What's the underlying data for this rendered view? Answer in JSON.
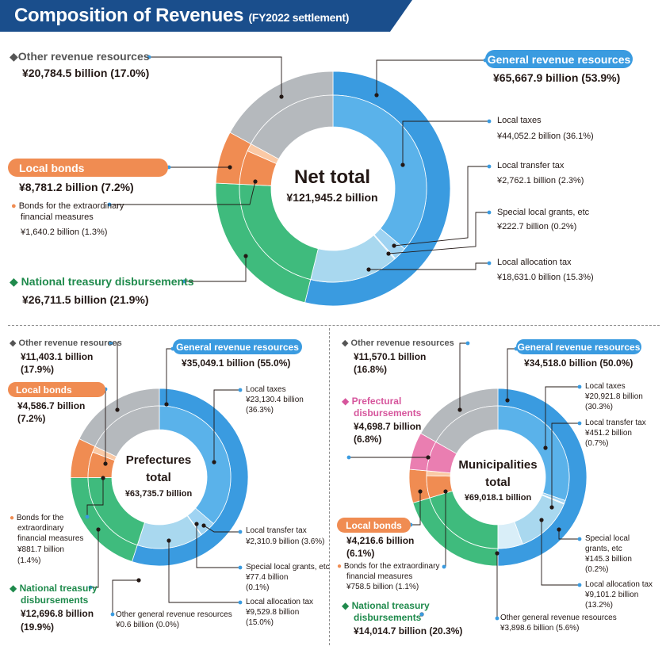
{
  "header": {
    "title": "Composition of Revenues",
    "subtitle": "(FY2022 settlement)",
    "bg_color": "#1a4e8c"
  },
  "colors": {
    "general_outer": "#3a9be0",
    "local_taxes": "#5ab2ea",
    "local_transfer_tax": "#9fd3f2",
    "special_grants": "#c7e6f8",
    "local_allocation_tax": "#a9d8ef",
    "other_general": "#d9eef8",
    "national_treasury": "#3fbb7d",
    "local_bonds": "#f08c52",
    "bonds_extraordinary": "#fac9a5",
    "prefectural": "#ea7eb1",
    "other": "#b5b9bd",
    "leader": "#231815"
  },
  "net": {
    "center_title": "Net total",
    "center_value": "¥121,945.2 billion",
    "other_label": "Other revenue resources",
    "other_value": "¥20,784.5 billion (17.0%)",
    "general_label": "General revenue resources",
    "general_value": "¥65,667.9 billion (53.9%)",
    "local_bonds_label": "Local bonds",
    "local_bonds_value": "¥8,781.2 billion (7.2%)",
    "bonds_ext_label_1": "Bonds for the extraordinary",
    "bonds_ext_label_2": "financial measures",
    "bonds_ext_value": "¥1,640.2 billion (1.3%)",
    "national_label": "National treasury disbursements",
    "national_value": "¥26,711.5 billion (21.9%)",
    "local_taxes_label": "Local taxes",
    "local_taxes_value": "¥44,052.2 billion (36.1%)",
    "transfer_label": "Local transfer tax",
    "transfer_value": "¥2,762.1 billion (2.3%)",
    "special_label": "Special local grants, etc",
    "special_value": "¥222.7 billion (0.2%)",
    "allocation_label": "Local allocation tax",
    "allocation_value": "¥18,631.0 billion (15.3%)"
  },
  "pref": {
    "center_title_1": "Prefectures",
    "center_title_2": "total",
    "center_value": "¥63,735.7 billion",
    "other_label": "Other revenue resources",
    "other_value_1": "¥11,403.1 billion",
    "other_value_2": "(17.9%)",
    "general_label": "General revenue resources",
    "general_value": "¥35,049.1 billion (55.0%)",
    "local_bonds_label": "Local bonds",
    "local_bonds_value_1": "¥4,586.7 billion",
    "local_bonds_value_2": "(7.2%)",
    "bonds_ext_1": "Bonds for the",
    "bonds_ext_2": "extraordinary",
    "bonds_ext_3": "financial measures",
    "bonds_ext_value_1": "¥881.7 billion",
    "bonds_ext_value_2": "(1.4%)",
    "national_label_1": "National treasury",
    "national_label_2": "disbursements",
    "national_value_1": "¥12,696.8 billion",
    "national_value_2": "(19.9%)",
    "local_taxes_label": "Local taxes",
    "local_taxes_value_1": "¥23,130.4 billion",
    "local_taxes_value_2": "(36.3%)",
    "transfer_label": "Local transfer tax",
    "transfer_value": "¥2,310.9 billion (3.6%)",
    "special_label": "Special local grants, etc",
    "special_value_1": "¥77.4 billion",
    "special_value_2": "(0.1%)",
    "allocation_label": "Local allocation tax",
    "allocation_value_1": "¥9,529.8 billion",
    "allocation_value_2": "(15.0%)",
    "other_general_label": "Other general revenue resources",
    "other_general_value": "¥0.6 billion (0.0%)"
  },
  "muni": {
    "center_title_1": "Municipalities",
    "center_title_2": "total",
    "center_value": "¥69,018.1 billion",
    "other_label": "Other revenue resources",
    "other_value_1": "¥11,570.1 billion",
    "other_value_2": "(16.8%)",
    "general_label": "General revenue resources",
    "general_value": "¥34,518.0 billion (50.0%)",
    "prefectural_label_1": "Prefectural",
    "prefectural_label_2": "disbursements",
    "prefectural_value_1": "¥4,698.7 billion",
    "prefectural_value_2": "(6.8%)",
    "local_bonds_label": "Local bonds",
    "local_bonds_value_1": "¥4,216.6 billion",
    "local_bonds_value_2": "(6.1%)",
    "bonds_ext_1": "Bonds for the extraordinary",
    "bonds_ext_2": "financial measures",
    "bonds_ext_value": "¥758.5 billion (1.1%)",
    "national_label_1": "National treasury",
    "national_label_2": "disbursements",
    "national_value": "¥14,014.7 billion (20.3%)",
    "local_taxes_label": "Local taxes",
    "local_taxes_value_1": "¥20,921.8 billion",
    "local_taxes_value_2": "(30.3%)",
    "transfer_label": "Local transfer tax",
    "transfer_value_1": "¥451.2 billion",
    "transfer_value_2": "(0.7%)",
    "special_label_1": "Special local",
    "special_label_2": "grants, etc",
    "special_value_1": "¥145.3 billion",
    "special_value_2": "(0.2%)",
    "allocation_label": "Local allocation tax",
    "allocation_value_1": "¥9,101.2 billion",
    "allocation_value_2": "(13.2%)",
    "other_general_label": "Other general revenue resources",
    "other_general_value": "¥3,898.6 billion (5.6%)"
  },
  "chart_data": [
    {
      "type": "pie",
      "title": "Net total",
      "unit": "¥ billion",
      "total": 121945.2,
      "outer_ring": [
        {
          "key": "general",
          "label": "General revenue resources",
          "value": 65667.9,
          "pct": 53.9
        },
        {
          "key": "national_treasury",
          "label": "National treasury disbursements",
          "value": 26711.5,
          "pct": 21.9
        },
        {
          "key": "local_bonds",
          "label": "Local bonds",
          "value": 8781.2,
          "pct": 7.2
        },
        {
          "key": "other",
          "label": "Other revenue resources",
          "value": 20784.5,
          "pct": 17.0
        }
      ],
      "inner_ring": [
        {
          "key": "local_taxes",
          "label": "Local taxes",
          "value": 44052.2,
          "pct": 36.1
        },
        {
          "key": "local_transfer_tax",
          "label": "Local transfer tax",
          "value": 2762.1,
          "pct": 2.3
        },
        {
          "key": "special_grants",
          "label": "Special local grants, etc",
          "value": 222.7,
          "pct": 0.2
        },
        {
          "key": "local_allocation_tax",
          "label": "Local allocation tax",
          "value": 18631.0,
          "pct": 15.3
        },
        {
          "key": "national_treasury",
          "label": "National treasury disbursements",
          "value": 26711.5,
          "pct": 21.9
        },
        {
          "key": "local_bonds_other",
          "label": "Local bonds",
          "value": 7141.0,
          "pct": 5.9
        },
        {
          "key": "bonds_extraordinary",
          "label": "Bonds for the extraordinary financial measures",
          "value": 1640.2,
          "pct": 1.3
        },
        {
          "key": "other",
          "label": "Other revenue resources",
          "value": 20784.5,
          "pct": 17.0
        }
      ]
    },
    {
      "type": "pie",
      "title": "Prefectures total",
      "unit": "¥ billion",
      "total": 63735.7,
      "outer_ring": [
        {
          "key": "general",
          "label": "General revenue resources",
          "value": 35049.1,
          "pct": 55.0
        },
        {
          "key": "national_treasury",
          "label": "National treasury disbursements",
          "value": 12696.8,
          "pct": 19.9
        },
        {
          "key": "local_bonds",
          "label": "Local bonds",
          "value": 4586.7,
          "pct": 7.2
        },
        {
          "key": "other",
          "label": "Other revenue resources",
          "value": 11403.1,
          "pct": 17.9
        }
      ],
      "inner_ring": [
        {
          "key": "local_taxes",
          "label": "Local taxes",
          "value": 23130.4,
          "pct": 36.3
        },
        {
          "key": "local_transfer_tax",
          "label": "Local transfer tax",
          "value": 2310.9,
          "pct": 3.6
        },
        {
          "key": "special_grants",
          "label": "Special local grants, etc",
          "value": 77.4,
          "pct": 0.1
        },
        {
          "key": "local_allocation_tax",
          "label": "Local allocation tax",
          "value": 9529.8,
          "pct": 15.0
        },
        {
          "key": "other_general",
          "label": "Other general revenue resources",
          "value": 0.6,
          "pct": 0.0
        },
        {
          "key": "national_treasury",
          "label": "National treasury disbursements",
          "value": 12696.8,
          "pct": 19.9
        },
        {
          "key": "local_bonds_other",
          "label": "Local bonds",
          "value": 3705.0,
          "pct": 5.8
        },
        {
          "key": "bonds_extraordinary",
          "label": "Bonds for the extraordinary financial measures",
          "value": 881.7,
          "pct": 1.4
        },
        {
          "key": "other",
          "label": "Other revenue resources",
          "value": 11403.1,
          "pct": 17.9
        }
      ]
    },
    {
      "type": "pie",
      "title": "Municipalities total",
      "unit": "¥ billion",
      "total": 69018.1,
      "outer_ring": [
        {
          "key": "general",
          "label": "General revenue resources",
          "value": 34518.0,
          "pct": 50.0
        },
        {
          "key": "national_treasury",
          "label": "National treasury disbursements",
          "value": 14014.7,
          "pct": 20.3
        },
        {
          "key": "local_bonds",
          "label": "Local bonds",
          "value": 4216.6,
          "pct": 6.1
        },
        {
          "key": "prefectural",
          "label": "Prefectural disbursements",
          "value": 4698.7,
          "pct": 6.8
        },
        {
          "key": "other",
          "label": "Other revenue resources",
          "value": 11570.1,
          "pct": 16.8
        }
      ],
      "inner_ring": [
        {
          "key": "local_taxes",
          "label": "Local taxes",
          "value": 20921.8,
          "pct": 30.3
        },
        {
          "key": "local_transfer_tax",
          "label": "Local transfer tax",
          "value": 451.2,
          "pct": 0.7
        },
        {
          "key": "special_grants",
          "label": "Special local grants, etc",
          "value": 145.3,
          "pct": 0.2
        },
        {
          "key": "local_allocation_tax",
          "label": "Local allocation tax",
          "value": 9101.2,
          "pct": 13.2
        },
        {
          "key": "other_general",
          "label": "Other general revenue resources",
          "value": 3898.6,
          "pct": 5.6
        },
        {
          "key": "national_treasury",
          "label": "National treasury disbursements",
          "value": 14014.7,
          "pct": 20.3
        },
        {
          "key": "local_bonds_other",
          "label": "Local bonds",
          "value": 3458.1,
          "pct": 5.0
        },
        {
          "key": "bonds_extraordinary",
          "label": "Bonds for the extraordinary financial measures",
          "value": 758.5,
          "pct": 1.1
        },
        {
          "key": "prefectural",
          "label": "Prefectural disbursements",
          "value": 4698.7,
          "pct": 6.8
        },
        {
          "key": "other",
          "label": "Other revenue resources",
          "value": 11570.1,
          "pct": 16.8
        }
      ]
    }
  ]
}
